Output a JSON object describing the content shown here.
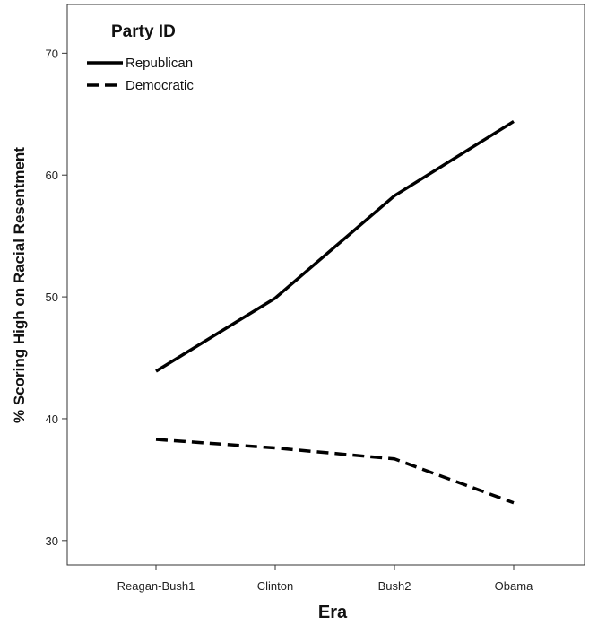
{
  "chart_data": {
    "type": "line",
    "categories": [
      "Reagan-Bush1",
      "Clinton",
      "Bush2",
      "Obama"
    ],
    "series": [
      {
        "name": "Republican",
        "values": [
          43.9,
          49.9,
          58.3,
          64.4
        ],
        "line_style": "solid",
        "color": "#000000"
      },
      {
        "name": "Democratic",
        "values": [
          38.3,
          37.6,
          36.7,
          33.1
        ],
        "line_style": "dashed",
        "color": "#000000"
      }
    ],
    "title": "",
    "xlabel": "Era",
    "ylabel": "% Scoring High on Racial Resentment",
    "ylim": [
      28,
      74
    ],
    "yticks": [
      30,
      40,
      50,
      60,
      70
    ],
    "legend": {
      "title": "Party ID",
      "position": "top-left"
    },
    "grid": false
  }
}
